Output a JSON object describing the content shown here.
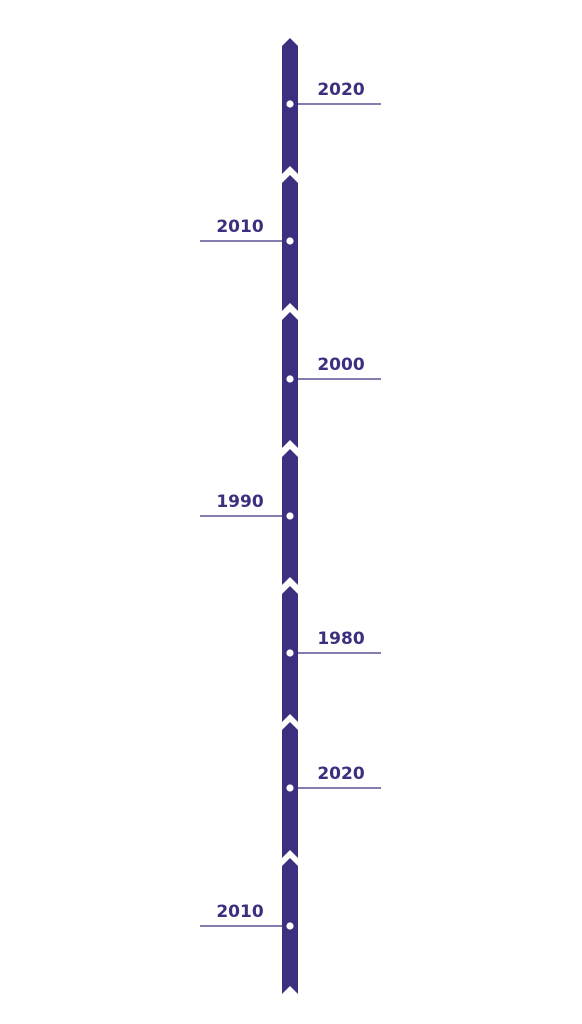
{
  "colors": {
    "accent": "#3d2f7f",
    "dot": "#ffffff",
    "background": "#ffffff"
  },
  "timeline": {
    "entries": [
      {
        "year": "2020",
        "side": "right"
      },
      {
        "year": "2010",
        "side": "left"
      },
      {
        "year": "2000",
        "side": "right"
      },
      {
        "year": "1990",
        "side": "left"
      },
      {
        "year": "1980",
        "side": "right"
      },
      {
        "year": "2020",
        "side": "right"
      },
      {
        "year": "2010",
        "side": "left"
      }
    ]
  }
}
